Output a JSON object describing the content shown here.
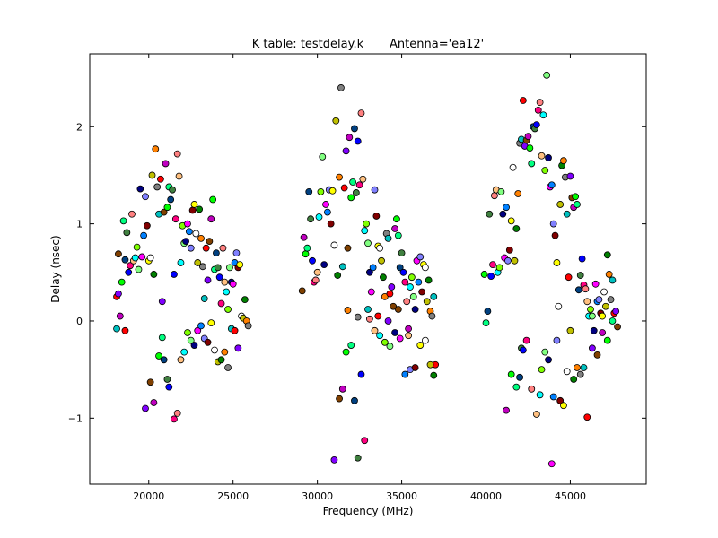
{
  "chart_data": {
    "type": "scatter",
    "title": "K table: testdelay.k       Antenna='ea12'",
    "xlabel": "Frequency (MHz)",
    "ylabel": "Delay (nsec)",
    "xlim": [
      16500,
      49500
    ],
    "ylim": [
      -1.68,
      2.75
    ],
    "xticks": [
      20000,
      25000,
      30000,
      35000,
      40000,
      45000
    ],
    "xtick_labels": [
      "20000",
      "25000",
      "30000",
      "35000",
      "40000",
      "45000"
    ],
    "yticks": [
      -1,
      0,
      1,
      2
    ],
    "ytick_labels": [
      "−1",
      "0",
      "1",
      "2"
    ],
    "grid": false,
    "legend": "none",
    "palette": [
      "#ff0000",
      "#00ff00",
      "#0000ff",
      "#00ffff",
      "#ff00ff",
      "#ffff00",
      "#ff8000",
      "#8000ff",
      "#00ff80",
      "#ff0080",
      "#80ff00",
      "#0080ff",
      "#ffffff",
      "#808080",
      "#804000",
      "#004080",
      "#ff8080",
      "#80ff80",
      "#8080ff",
      "#c0c000",
      "#00c0c0",
      "#c000c0",
      "#408040",
      "#ffc080",
      "#000080",
      "#800000",
      "#008000"
    ],
    "points": [
      [
        18100,
        0.25
      ],
      [
        18200,
        0.28
      ],
      [
        18200,
        0.69
      ],
      [
        18300,
        0.05
      ],
      [
        18400,
        0.4
      ],
      [
        18500,
        1.03
      ],
      [
        18600,
        0.63
      ],
      [
        18700,
        0.91
      ],
      [
        18800,
        0.5
      ],
      [
        18900,
        0.57
      ],
      [
        19000,
        1.1
      ],
      [
        19100,
        0.62
      ],
      [
        19200,
        0.65
      ],
      [
        19300,
        0.76
      ],
      [
        19400,
        0.53
      ],
      [
        19500,
        1.36
      ],
      [
        19600,
        0.66
      ],
      [
        19700,
        0.88
      ],
      [
        19800,
        1.28
      ],
      [
        19900,
        0.98
      ],
      [
        20000,
        0.62
      ],
      [
        20100,
        0.65
      ],
      [
        20200,
        1.5
      ],
      [
        20300,
        0.48
      ],
      [
        20400,
        1.77
      ],
      [
        20500,
        1.38
      ],
      [
        20600,
        1.1
      ],
      [
        20700,
        1.46
      ],
      [
        20800,
        0.2
      ],
      [
        20900,
        1.12
      ],
      [
        21000,
        1.62
      ],
      [
        21100,
        1.17
      ],
      [
        21200,
        1.38
      ],
      [
        21300,
        1.25
      ],
      [
        21400,
        1.35
      ],
      [
        21500,
        0.48
      ],
      [
        21600,
        1.05
      ],
      [
        21700,
        1.72
      ],
      [
        21800,
        1.49
      ],
      [
        21900,
        0.6
      ],
      [
        22000,
        0.98
      ],
      [
        22100,
        0.8
      ],
      [
        22200,
        0.82
      ],
      [
        22300,
        1.0
      ],
      [
        22400,
        0.92
      ],
      [
        22500,
        0.75
      ],
      [
        22600,
        1.14
      ],
      [
        22700,
        1.2
      ],
      [
        22800,
        0.9
      ],
      [
        22900,
        0.6
      ],
      [
        23000,
        1.15
      ],
      [
        23100,
        0.85
      ],
      [
        23200,
        0.56
      ],
      [
        23300,
        0.23
      ],
      [
        23400,
        0.75
      ],
      [
        23500,
        0.42
      ],
      [
        23600,
        0.82
      ],
      [
        23700,
        1.05
      ],
      [
        23800,
        1.25
      ],
      [
        23900,
        0.53
      ],
      [
        24000,
        0.7
      ],
      [
        24100,
        0.55
      ],
      [
        24200,
        0.45
      ],
      [
        24300,
        0.18
      ],
      [
        24400,
        0.75
      ],
      [
        24500,
        0.4
      ],
      [
        24600,
        0.3
      ],
      [
        24700,
        0.12
      ],
      [
        24800,
        0.55
      ],
      [
        24900,
        0.4
      ],
      [
        25000,
        0.38
      ],
      [
        25100,
        0.6
      ],
      [
        25200,
        0.7
      ],
      [
        25300,
        0.55
      ],
      [
        25400,
        0.58
      ],
      [
        25500,
        0.05
      ],
      [
        25600,
        0.03
      ],
      [
        25700,
        0.22
      ],
      [
        25800,
        0.0
      ],
      [
        25900,
        -0.05
      ],
      [
        18100,
        -0.08
      ],
      [
        18600,
        -0.1
      ],
      [
        19800,
        -0.9
      ],
      [
        20100,
        -0.63
      ],
      [
        20300,
        -0.84
      ],
      [
        20600,
        -0.36
      ],
      [
        20800,
        -0.17
      ],
      [
        20900,
        -0.4
      ],
      [
        21100,
        -0.6
      ],
      [
        21200,
        -0.68
      ],
      [
        21500,
        -1.01
      ],
      [
        21700,
        -0.95
      ],
      [
        21900,
        -0.4
      ],
      [
        22100,
        -0.32
      ],
      [
        22300,
        -0.12
      ],
      [
        22500,
        -0.2
      ],
      [
        22700,
        -0.25
      ],
      [
        22900,
        -0.1
      ],
      [
        23100,
        -0.05
      ],
      [
        23300,
        -0.18
      ],
      [
        23500,
        -0.22
      ],
      [
        23700,
        -0.02
      ],
      [
        23900,
        -0.3
      ],
      [
        24100,
        -0.42
      ],
      [
        24300,
        -0.4
      ],
      [
        24500,
        -0.32
      ],
      [
        24700,
        -0.48
      ],
      [
        24900,
        -0.08
      ],
      [
        25100,
        -0.1
      ],
      [
        25300,
        -0.28
      ],
      [
        29100,
        0.31
      ],
      [
        29200,
        0.86
      ],
      [
        29300,
        0.69
      ],
      [
        29400,
        0.75
      ],
      [
        29500,
        1.33
      ],
      [
        29600,
        1.05
      ],
      [
        29700,
        0.62
      ],
      [
        29800,
        0.4
      ],
      [
        29900,
        0.42
      ],
      [
        30000,
        0.5
      ],
      [
        30100,
        1.07
      ],
      [
        30200,
        1.33
      ],
      [
        30300,
        1.69
      ],
      [
        30400,
        0.58
      ],
      [
        30500,
        1.2
      ],
      [
        30600,
        1.12
      ],
      [
        30700,
        1.35
      ],
      [
        30800,
        1.0
      ],
      [
        30900,
        1.34
      ],
      [
        31000,
        0.78
      ],
      [
        31100,
        2.06
      ],
      [
        31200,
        0.47
      ],
      [
        31300,
        1.48
      ],
      [
        31400,
        2.4
      ],
      [
        31500,
        0.56
      ],
      [
        31600,
        1.37
      ],
      [
        31700,
        1.75
      ],
      [
        31800,
        0.75
      ],
      [
        31900,
        1.89
      ],
      [
        32000,
        1.27
      ],
      [
        32100,
        1.43
      ],
      [
        32200,
        1.98
      ],
      [
        32300,
        1.32
      ],
      [
        32400,
        1.85
      ],
      [
        32500,
        1.4
      ],
      [
        32600,
        2.14
      ],
      [
        32700,
        1.46
      ],
      [
        32800,
        0.93
      ],
      [
        32900,
        1.0
      ],
      [
        33000,
        0.8
      ],
      [
        33100,
        0.5
      ],
      [
        33200,
        0.3
      ],
      [
        33300,
        0.55
      ],
      [
        33400,
        1.35
      ],
      [
        33500,
        1.08
      ],
      [
        33600,
        0.77
      ],
      [
        33700,
        0.75
      ],
      [
        33800,
        0.62
      ],
      [
        33900,
        0.45
      ],
      [
        34000,
        0.25
      ],
      [
        34100,
        0.9
      ],
      [
        34200,
        0.85
      ],
      [
        34300,
        0.28
      ],
      [
        34400,
        0.35
      ],
      [
        34500,
        0.15
      ],
      [
        34600,
        0.95
      ],
      [
        34700,
        1.05
      ],
      [
        34800,
        0.88
      ],
      [
        34900,
        0.55
      ],
      [
        35000,
        0.7
      ],
      [
        35100,
        0.5
      ],
      [
        35200,
        0.4
      ],
      [
        35300,
        0.2
      ],
      [
        35400,
        -0.15
      ],
      [
        35500,
        0.35
      ],
      [
        35600,
        0.45
      ],
      [
        35700,
        0.25
      ],
      [
        35800,
        0.12
      ],
      [
        35900,
        0.62
      ],
      [
        36000,
        0.4
      ],
      [
        36100,
        0.66
      ],
      [
        36200,
        0.3
      ],
      [
        36300,
        0.58
      ],
      [
        36400,
        0.55
      ],
      [
        36500,
        0.2
      ],
      [
        36600,
        0.42
      ],
      [
        36700,
        0.1
      ],
      [
        36800,
        0.05
      ],
      [
        36900,
        0.25
      ],
      [
        37000,
        -0.45
      ],
      [
        31000,
        -1.43
      ],
      [
        31300,
        -0.8
      ],
      [
        31500,
        -0.7
      ],
      [
        31700,
        -0.32
      ],
      [
        32000,
        -0.25
      ],
      [
        32200,
        -0.82
      ],
      [
        32400,
        -1.41
      ],
      [
        32600,
        -0.55
      ],
      [
        32800,
        -1.23
      ],
      [
        33100,
        0.02
      ],
      [
        33400,
        -0.1
      ],
      [
        33700,
        -0.15
      ],
      [
        34000,
        -0.22
      ],
      [
        34300,
        -0.26
      ],
      [
        34600,
        -0.12
      ],
      [
        34900,
        -0.18
      ],
      [
        35200,
        -0.55
      ],
      [
        35500,
        -0.5
      ],
      [
        35800,
        -0.48
      ],
      [
        36100,
        -0.25
      ],
      [
        36400,
        -0.2
      ],
      [
        36700,
        -0.45
      ],
      [
        36900,
        -0.56
      ],
      [
        31800,
        0.11
      ],
      [
        32400,
        0.04
      ],
      [
        33000,
        0.12
      ],
      [
        33600,
        0.05
      ],
      [
        34200,
        0.0
      ],
      [
        34800,
        0.12
      ],
      [
        35400,
        -0.08
      ],
      [
        39900,
        0.48
      ],
      [
        40000,
        -0.02
      ],
      [
        40100,
        0.1
      ],
      [
        40200,
        1.1
      ],
      [
        40300,
        0.46
      ],
      [
        40400,
        0.58
      ],
      [
        40500,
        1.29
      ],
      [
        40600,
        1.35
      ],
      [
        40700,
        0.5
      ],
      [
        40800,
        0.55
      ],
      [
        40900,
        1.33
      ],
      [
        41000,
        1.1
      ],
      [
        41100,
        0.65
      ],
      [
        41200,
        1.17
      ],
      [
        41300,
        0.62
      ],
      [
        41400,
        0.73
      ],
      [
        41500,
        1.03
      ],
      [
        41600,
        1.58
      ],
      [
        41700,
        0.62
      ],
      [
        41800,
        0.95
      ],
      [
        41900,
        1.31
      ],
      [
        42000,
        1.83
      ],
      [
        42100,
        1.87
      ],
      [
        42200,
        2.27
      ],
      [
        42300,
        1.8
      ],
      [
        42400,
        1.86
      ],
      [
        42500,
        1.9
      ],
      [
        42600,
        1.78
      ],
      [
        42700,
        1.62
      ],
      [
        42800,
        2.0
      ],
      [
        42900,
        1.98
      ],
      [
        43000,
        2.02
      ],
      [
        43100,
        2.17
      ],
      [
        43200,
        2.25
      ],
      [
        43300,
        1.7
      ],
      [
        43400,
        2.12
      ],
      [
        43500,
        1.55
      ],
      [
        43600,
        2.53
      ],
      [
        43700,
        1.68
      ],
      [
        43800,
        1.38
      ],
      [
        43900,
        1.4
      ],
      [
        44000,
        1.0
      ],
      [
        44100,
        0.88
      ],
      [
        44200,
        0.6
      ],
      [
        44300,
        0.15
      ],
      [
        44400,
        1.2
      ],
      [
        44500,
        1.6
      ],
      [
        44600,
        1.65
      ],
      [
        44700,
        1.48
      ],
      [
        44800,
        1.1
      ],
      [
        44900,
        0.45
      ],
      [
        45000,
        1.49
      ],
      [
        45100,
        1.27
      ],
      [
        45200,
        1.17
      ],
      [
        45300,
        1.28
      ],
      [
        45400,
        1.2
      ],
      [
        45500,
        0.32
      ],
      [
        45600,
        0.47
      ],
      [
        45700,
        0.64
      ],
      [
        45800,
        0.37
      ],
      [
        45900,
        0.33
      ],
      [
        46000,
        0.2
      ],
      [
        46100,
        0.05
      ],
      [
        46200,
        0.12
      ],
      [
        46300,
        0.05
      ],
      [
        46400,
        -0.1
      ],
      [
        46500,
        0.38
      ],
      [
        46600,
        0.2
      ],
      [
        46700,
        0.22
      ],
      [
        46800,
        0.08
      ],
      [
        46900,
        0.05
      ],
      [
        47000,
        0.3
      ],
      [
        47100,
        0.15
      ],
      [
        47200,
        0.68
      ],
      [
        47300,
        0.48
      ],
      [
        47400,
        0.22
      ],
      [
        47500,
        0.42
      ],
      [
        47600,
        0.08
      ],
      [
        47700,
        0.1
      ],
      [
        47800,
        -0.06
      ],
      [
        41200,
        -0.92
      ],
      [
        41500,
        -0.55
      ],
      [
        41800,
        -0.68
      ],
      [
        42000,
        -0.58
      ],
      [
        42100,
        -0.28
      ],
      [
        42200,
        -0.3
      ],
      [
        42400,
        -0.2
      ],
      [
        42700,
        -0.7
      ],
      [
        43000,
        -0.96
      ],
      [
        43200,
        -0.76
      ],
      [
        43300,
        -0.5
      ],
      [
        43500,
        -0.32
      ],
      [
        43700,
        -0.4
      ],
      [
        43900,
        -1.47
      ],
      [
        44000,
        -0.78
      ],
      [
        44200,
        -0.2
      ],
      [
        44400,
        -0.82
      ],
      [
        44600,
        -0.87
      ],
      [
        44800,
        -0.52
      ],
      [
        45000,
        -0.1
      ],
      [
        45200,
        -0.6
      ],
      [
        45400,
        -0.48
      ],
      [
        45600,
        -0.55
      ],
      [
        45800,
        -0.48
      ],
      [
        46000,
        -0.99
      ],
      [
        46300,
        -0.28
      ],
      [
        46600,
        -0.35
      ],
      [
        46900,
        -0.12
      ],
      [
        47200,
        -0.2
      ],
      [
        47500,
        0.0
      ]
    ]
  }
}
